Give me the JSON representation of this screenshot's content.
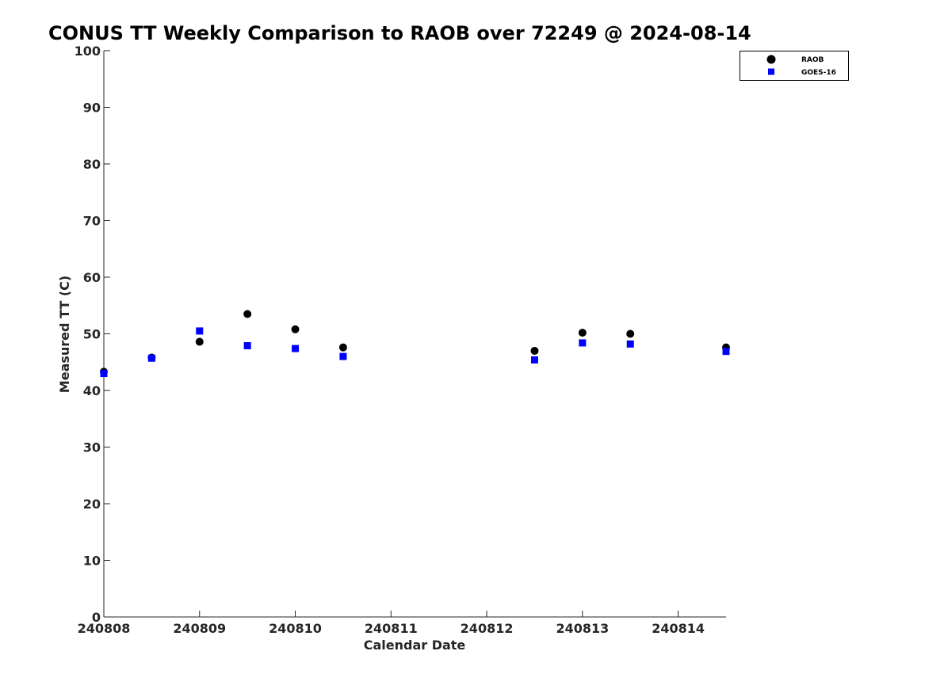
{
  "chart_data": {
    "type": "scatter",
    "title": "CONUS TT Weekly Comparison to RAOB over 72249 @ 2024-08-14",
    "xlabel": "Calendar Date",
    "ylabel": "Measured TT (C)",
    "xlim": [
      240808,
      240814.5
    ],
    "ylim": [
      0,
      100
    ],
    "x_ticks": [
      {
        "value": 240808,
        "label": "240808"
      },
      {
        "value": 240809,
        "label": "240809"
      },
      {
        "value": 240810,
        "label": "240810"
      },
      {
        "value": 240811,
        "label": "240811"
      },
      {
        "value": 240812,
        "label": "240812"
      },
      {
        "value": 240813,
        "label": "240813"
      },
      {
        "value": 240814,
        "label": "240814"
      }
    ],
    "y_ticks": [
      0,
      10,
      20,
      30,
      40,
      50,
      60,
      70,
      80,
      90,
      100
    ],
    "grid": false,
    "legend_position": "top-right",
    "series": [
      {
        "name": "RAOB",
        "marker": "circle",
        "color": "#000000",
        "x": [
          240808,
          240808.5,
          240809,
          240809.5,
          240810,
          240810.5,
          240812.5,
          240813,
          240813.5,
          240814.5
        ],
        "y": [
          43.3,
          45.8,
          48.6,
          53.5,
          50.8,
          47.6,
          47.0,
          50.2,
          50.0,
          47.6
        ]
      },
      {
        "name": "GOES-16",
        "marker": "square",
        "color": "#0000ff",
        "x": [
          240808,
          240808.5,
          240809,
          240809.5,
          240810,
          240810.5,
          240812.5,
          240813,
          240813.5,
          240814.5
        ],
        "y": [
          43.0,
          45.7,
          50.5,
          47.9,
          47.4,
          46.0,
          45.4,
          48.4,
          48.2,
          46.9
        ]
      }
    ]
  }
}
